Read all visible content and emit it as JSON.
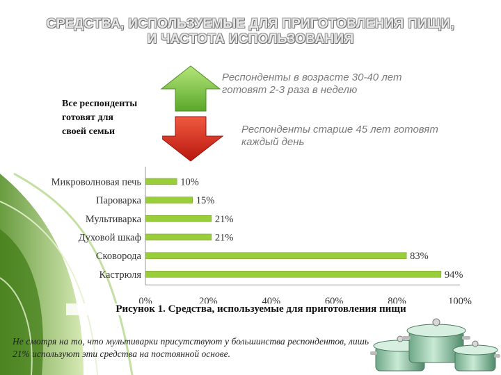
{
  "title": {
    "line1": "СРЕДСТВА, ИСПОЛЬЗУЕМЫЕ ДЛЯ ПРИГОТОВЛЕНИЯ ПИЩИ,",
    "line2": "И ЧАСТОТА ИСПОЛЬЗОВАНИЯ"
  },
  "notes": {
    "up_line1": "Респонденты в возрасте 30-40 лет",
    "up_line2": "готовят 2-3 раза в неделю",
    "down_line1": "Респонденты старше 45 лет готовят",
    "down_line2": "каждый день"
  },
  "all_respondents": {
    "line1": "Все респонденты",
    "line2": "готовят для",
    "line3": "своей семьи"
  },
  "colors": {
    "arrow_up": "#8ed14a",
    "arrow_down": "#d42a22",
    "bar": "#9acd3a",
    "swirl": "#6aa52a"
  },
  "chart_data": {
    "type": "bar",
    "orientation": "horizontal",
    "categories": [
      "Микроволновая печь",
      "Пароварка",
      "Мультиварка",
      "Духовой шкаф",
      "Сковорода",
      "Кастрюля"
    ],
    "values": [
      10,
      15,
      21,
      21,
      83,
      94
    ],
    "value_labels": [
      "10%",
      "15%",
      "21%",
      "21%",
      "83%",
      "94%"
    ],
    "xticks": [
      "0%",
      "20%",
      "40%",
      "60%",
      "80%",
      "100%"
    ],
    "xlim": [
      0,
      100
    ],
    "grid": false,
    "legend": "none"
  },
  "caption": "Рисунок 1. Средства, используемые для приготовления пищи",
  "bottom_text": "Не смотря на то, что мультиварки присутствуют у большинства респондентов, лишь 21% используют эти средства на постоянной основе."
}
